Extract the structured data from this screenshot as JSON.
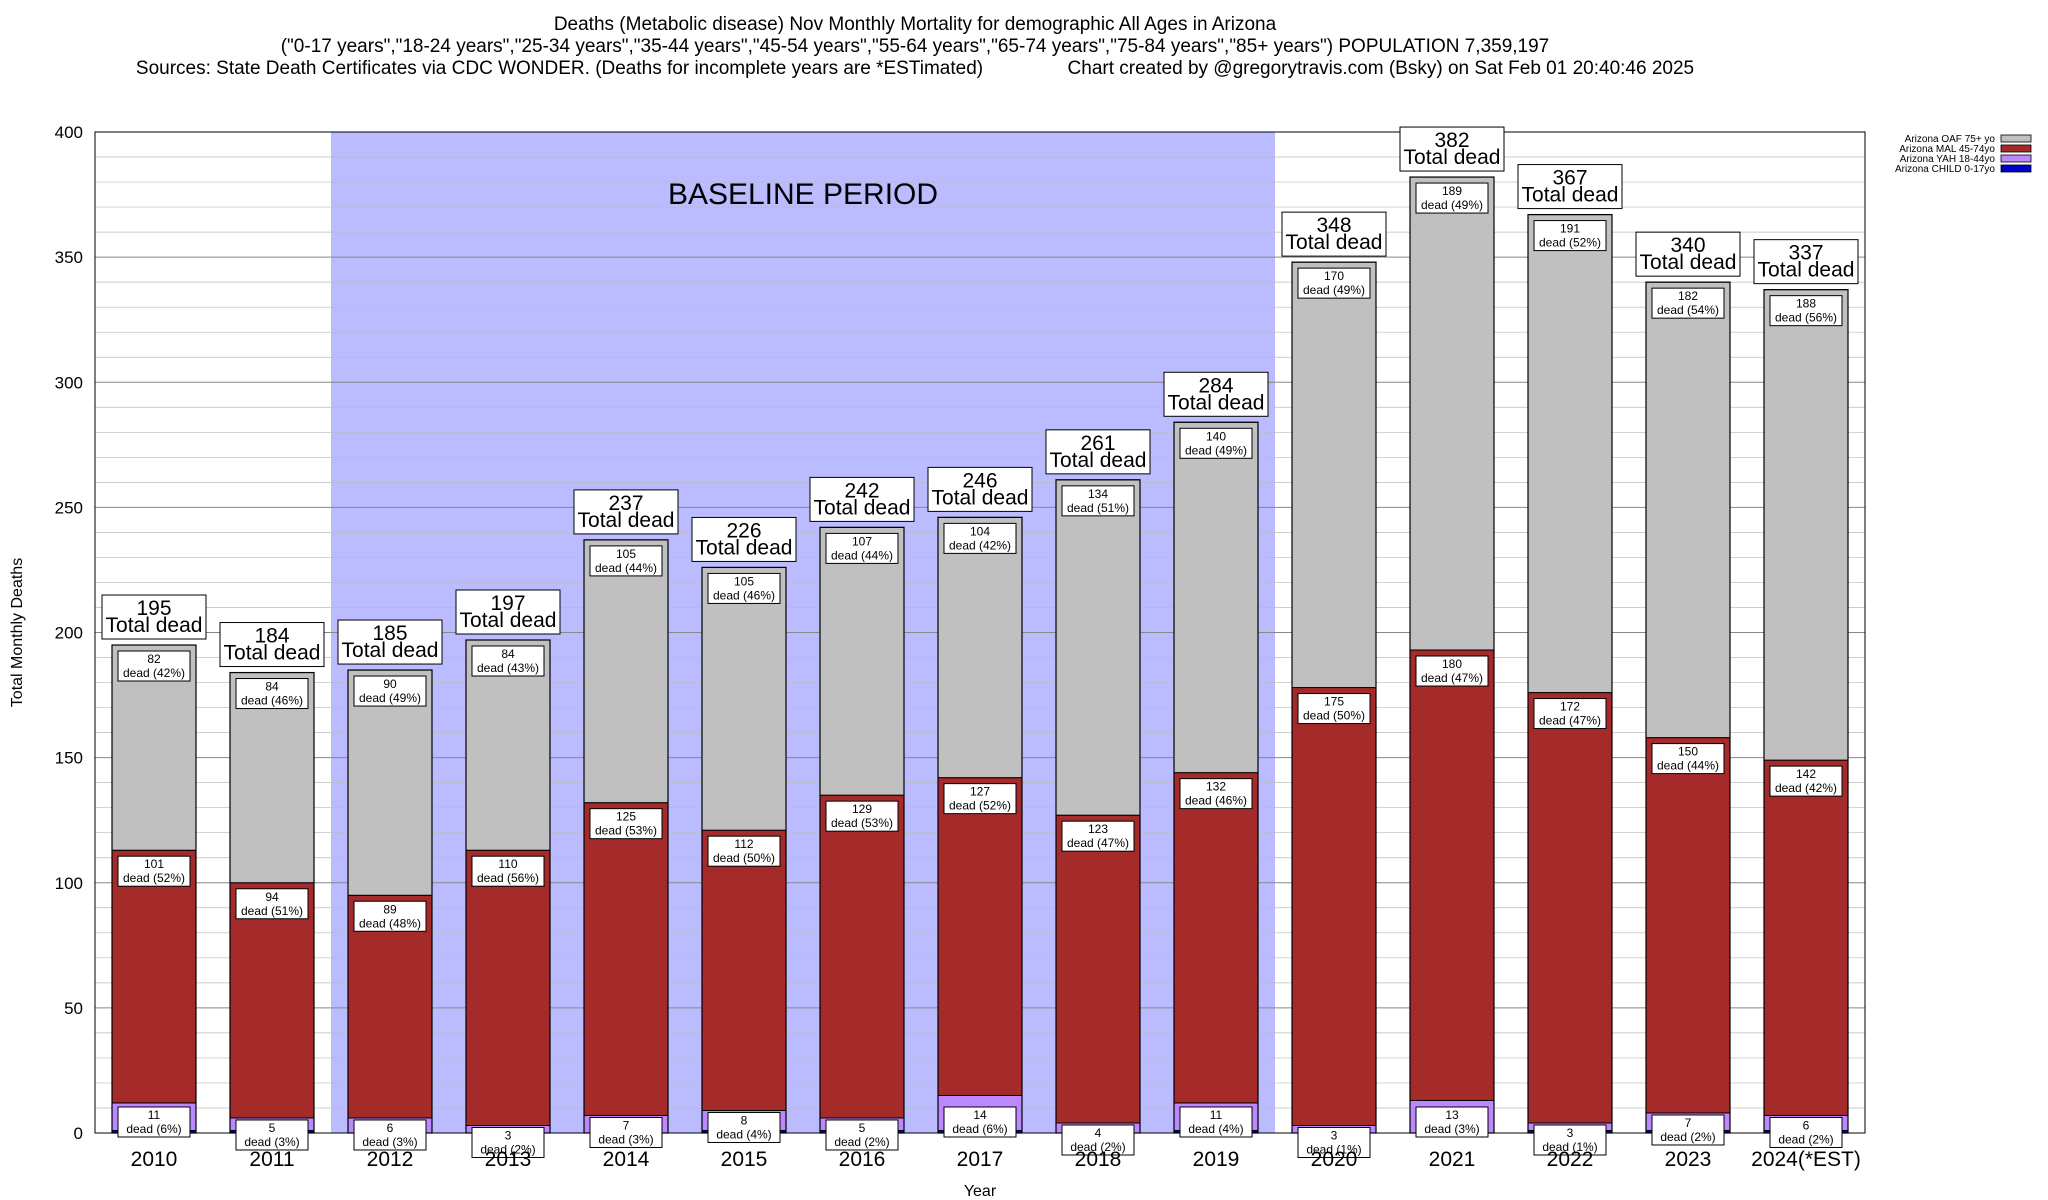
{
  "header": {
    "line1": "Deaths (Metabolic disease) Nov Monthly Mortality for demographic All Ages in Arizona",
    "line2": "(\"0-17 years\",\"18-24 years\",\"25-34 years\",\"35-44 years\",\"45-54 years\",\"55-64 years\",\"65-74 years\",\"75-84 years\",\"85+ years\") POPULATION 7,359,197",
    "line3": "Sources: State Death Certificates via CDC WONDER. (Deaths for incomplete years are *ESTimated)                Chart created by @gregorytravis.com (Bsky) on Sat Feb 01 20:40:46 2025"
  },
  "chart_data": {
    "type": "bar",
    "stacked": true,
    "xlabel": "Year",
    "ylabel": "Total Monthly Deaths",
    "ylim": [
      0,
      400
    ],
    "yticks": [
      0,
      50,
      100,
      150,
      200,
      250,
      300,
      350,
      400
    ],
    "grid": true,
    "legend_position": "top-right",
    "baseline_label": "BASELINE PERIOD",
    "baseline_range": [
      "2012",
      "2019"
    ],
    "baseline_color": "#bbbbff",
    "total_suffix": "Total dead",
    "categories": [
      "2010",
      "2011",
      "2012",
      "2013",
      "2014",
      "2015",
      "2016",
      "2017",
      "2018",
      "2019",
      "2020",
      "2021",
      "2022",
      "2023",
      "2024(*EST)"
    ],
    "totals": [
      195,
      184,
      185,
      197,
      237,
      226,
      242,
      246,
      261,
      284,
      348,
      382,
      367,
      340,
      337
    ],
    "series": [
      {
        "name": "Arizona CHILD 0-17yo",
        "color": "#0000cc",
        "values": [
          1,
          1,
          0,
          0,
          0,
          1,
          1,
          1,
          0,
          1,
          0,
          0,
          1,
          1,
          1
        ],
        "labels": []
      },
      {
        "name": "Arizona YAH 18-44yo",
        "color": "#bb88ff",
        "values": [
          11,
          5,
          6,
          3,
          7,
          8,
          5,
          14,
          4,
          11,
          3,
          13,
          3,
          7,
          6
        ],
        "labels": [
          "dead (6%)",
          "dead (3%)",
          "dead (3%)",
          "dead (2%)",
          "dead (3%)",
          "dead (4%)",
          "dead (2%)",
          "dead (6%)",
          "dead (2%)",
          "dead (4%)",
          "dead (1%)",
          "dead (3%)",
          "dead (1%)",
          "dead (2%)",
          "dead (2%)"
        ]
      },
      {
        "name": "Arizona MAL 45-74yo",
        "color": "#a52a2a",
        "values": [
          101,
          94,
          89,
          110,
          125,
          112,
          129,
          127,
          123,
          132,
          175,
          180,
          172,
          150,
          142
        ],
        "labels": [
          "dead (52%)",
          "dead (51%)",
          "dead (48%)",
          "dead (56%)",
          "dead (53%)",
          "dead (50%)",
          "dead (53%)",
          "dead (52%)",
          "dead (47%)",
          "dead (46%)",
          "dead (50%)",
          "dead (47%)",
          "dead (47%)",
          "dead (44%)",
          "dead (42%)"
        ]
      },
      {
        "name": "Arizona OAF 75+ yo",
        "color": "#c0c0c0",
        "values": [
          82,
          84,
          90,
          84,
          105,
          105,
          107,
          104,
          134,
          140,
          170,
          189,
          191,
          182,
          188
        ],
        "labels": [
          "dead (42%)",
          "dead (46%)",
          "dead (49%)",
          "dead (43%)",
          "dead (44%)",
          "dead (46%)",
          "dead (44%)",
          "dead (42%)",
          "dead (51%)",
          "dead (49%)",
          "dead (49%)",
          "dead (49%)",
          "dead (52%)",
          "dead (54%)",
          "dead (56%)"
        ]
      }
    ]
  }
}
